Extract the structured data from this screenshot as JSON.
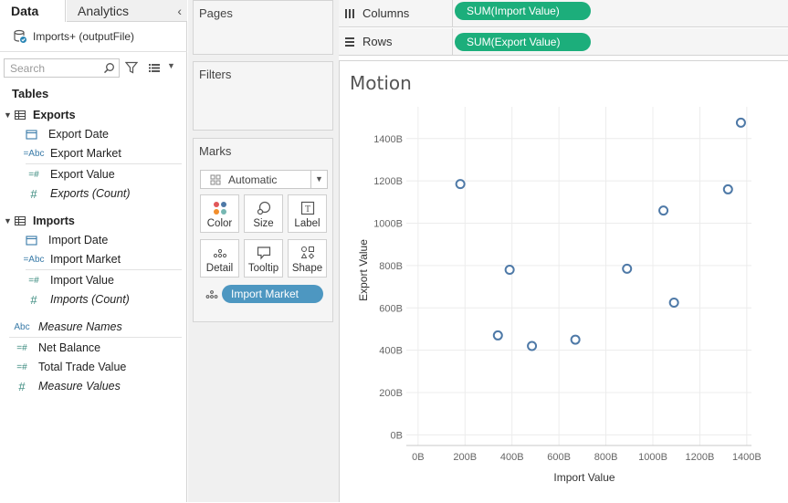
{
  "tabs": {
    "data": "Data",
    "analytics": "Analytics"
  },
  "datasource": {
    "name": "Imports+ (outputFile)"
  },
  "search": {
    "placeholder": "Search"
  },
  "tables_heading": "Tables",
  "tables": [
    {
      "name": "Exports",
      "fields": [
        {
          "icon": "calendar-icon",
          "type": "dimension-date",
          "name": "Export Date",
          "italic": false
        },
        {
          "icon": "abc-icon",
          "type": "dimension-string",
          "name": "Export Market",
          "italic": false
        },
        {
          "icon": "measure-calc-icon",
          "type": "measure",
          "name": "Export Value",
          "italic": false
        },
        {
          "icon": "measure-icon",
          "type": "measure",
          "name": "Exports (Count)",
          "italic": true
        }
      ]
    },
    {
      "name": "Imports",
      "fields": [
        {
          "icon": "calendar-icon",
          "type": "dimension-date",
          "name": "Import Date",
          "italic": false
        },
        {
          "icon": "abc-icon",
          "type": "dimension-string",
          "name": "Import Market",
          "italic": false
        },
        {
          "icon": "measure-calc-icon",
          "type": "measure",
          "name": "Import Value",
          "italic": false
        },
        {
          "icon": "measure-icon",
          "type": "measure",
          "name": "Imports (Count)",
          "italic": true
        }
      ]
    }
  ],
  "extra_fields": [
    {
      "icon": "abc-icon",
      "name": "Measure Names",
      "italic": true
    },
    {
      "icon": "measure-calc-icon",
      "name": "Net Balance",
      "italic": false
    },
    {
      "icon": "measure-calc-icon",
      "name": "Total Trade Value",
      "italic": false
    },
    {
      "icon": "measure-icon",
      "name": "Measure Values",
      "italic": true
    }
  ],
  "cards": {
    "pages": "Pages",
    "filters": "Filters",
    "marks": "Marks"
  },
  "marks": {
    "type": "Automatic",
    "buttons": [
      "Color",
      "Size",
      "Label",
      "Detail",
      "Tooltip",
      "Shape"
    ],
    "detail_pill": "Import Market"
  },
  "shelves": {
    "columns_label": "Columns",
    "columns_pill": "SUM(Import Value)",
    "rows_label": "Rows",
    "rows_pill": "SUM(Export Value)"
  },
  "colors": {
    "measure_pill": "#1cae7b",
    "dimension_pill": "#4d97c1",
    "mark": "#4e79a7"
  },
  "chart_data": {
    "type": "scatter",
    "title": "Motion",
    "xlabel": "Import Value",
    "ylabel": "Export Value",
    "xlim": [
      -50,
      1420
    ],
    "ylim": [
      -50,
      1550
    ],
    "x_ticks": [
      0,
      200,
      400,
      600,
      800,
      1000,
      1200,
      1400
    ],
    "x_tick_labels": [
      "0B",
      "200B",
      "400B",
      "600B",
      "800B",
      "1000B",
      "1200B",
      "1400B"
    ],
    "y_ticks": [
      0,
      200,
      400,
      600,
      800,
      1000,
      1200,
      1400
    ],
    "y_tick_labels": [
      "0B",
      "200B",
      "400B",
      "600B",
      "800B",
      "1000B",
      "1200B",
      "1400B"
    ],
    "grid": true,
    "legend": "none",
    "marker": "open-circle",
    "points": [
      {
        "x": 180,
        "y": 1185
      },
      {
        "x": 340,
        "y": 470
      },
      {
        "x": 390,
        "y": 780
      },
      {
        "x": 485,
        "y": 420
      },
      {
        "x": 670,
        "y": 450
      },
      {
        "x": 890,
        "y": 785
      },
      {
        "x": 1045,
        "y": 1060
      },
      {
        "x": 1090,
        "y": 625
      },
      {
        "x": 1320,
        "y": 1160
      },
      {
        "x": 1375,
        "y": 1475
      }
    ]
  }
}
